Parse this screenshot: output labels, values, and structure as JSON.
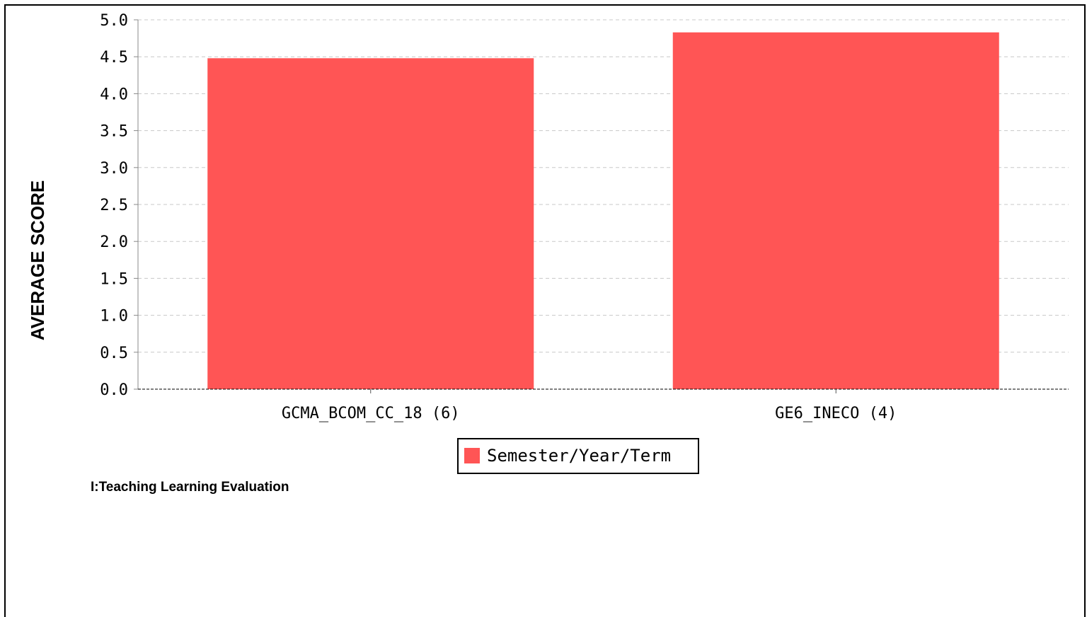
{
  "chart_data": {
    "type": "bar",
    "categories": [
      "GCMA_BCOM_CC_18 (6)",
      "GE6_INECO (4)"
    ],
    "series": [
      {
        "name": "Semester/Year/Term",
        "values": [
          4.48,
          4.83
        ],
        "color": "#ff5555"
      }
    ],
    "ylabel": "AVERAGE SCORE",
    "xlabel": "",
    "ylim": [
      0,
      5
    ],
    "yticks": [
      "0.0",
      "0.5",
      "1.0",
      "1.5",
      "2.0",
      "2.5",
      "3.0",
      "3.5",
      "4.0",
      "4.5",
      "5.0"
    ],
    "grid": true,
    "legend_position": "bottom-center"
  },
  "caption": "I:Teaching Learning Evaluation"
}
